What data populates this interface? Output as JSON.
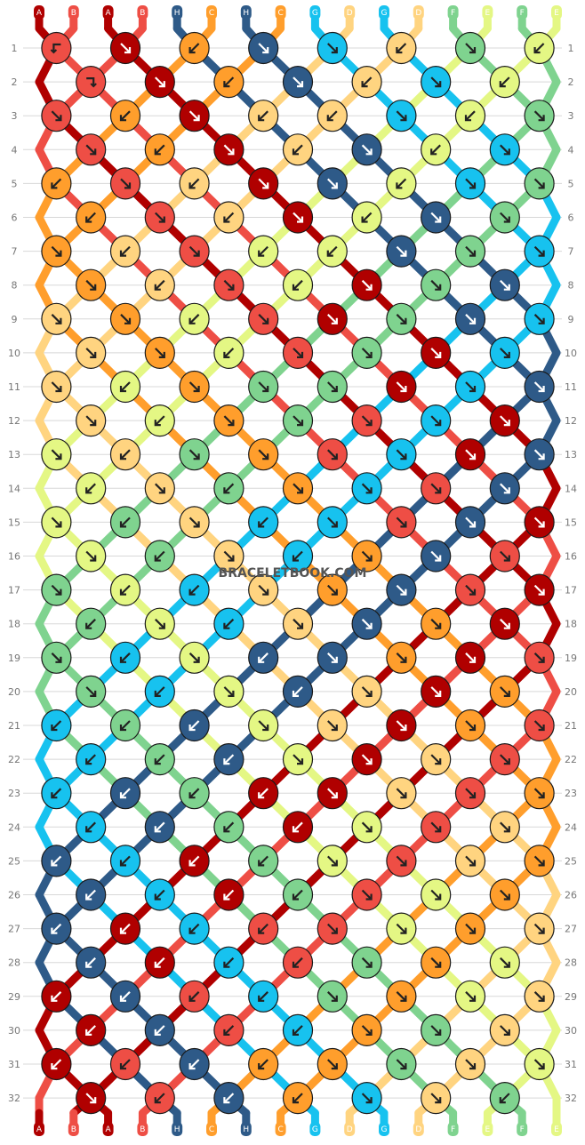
{
  "watermark": "BRACELETBOOK.COM",
  "colors": {
    "A": "#b00000",
    "B": "#ee4e45",
    "H": "#2e5a88",
    "C": "#ff9e2c",
    "G": "#17c2ef",
    "D": "#ffd480",
    "F": "#7fd38f",
    "E": "#e4f784"
  },
  "strands_top": [
    "A",
    "B",
    "A",
    "B",
    "H",
    "C",
    "H",
    "C",
    "G",
    "D",
    "G",
    "D",
    "F",
    "E",
    "F",
    "E"
  ],
  "strands_bottom": [
    "A",
    "B",
    "A",
    "B",
    "H",
    "C",
    "H",
    "C",
    "G",
    "D",
    "G",
    "D",
    "F",
    "E",
    "F",
    "E"
  ],
  "row_numbers": [
    1,
    2,
    3,
    4,
    5,
    6,
    7,
    8,
    9,
    10,
    11,
    12,
    13,
    14,
    15,
    16,
    17,
    18,
    19,
    20,
    21,
    22,
    23,
    24,
    25,
    26,
    27,
    28,
    29,
    30,
    31,
    32
  ],
  "knot_icons": {
    "forward": "arrow-down-right-icon",
    "backward": "arrow-down-left-icon",
    "forward_backward": "arrow-right-then-down-icon",
    "backward_forward": "arrow-left-then-down-icon"
  },
  "knots": {
    "r1": [
      "B:bf",
      "A:f",
      "C:b",
      "H:f",
      "G:f",
      "D:b",
      "F:f",
      "E:b"
    ],
    "r2": [
      "B:fb",
      "A:f",
      "C:b",
      "H:f",
      "D:b",
      "G:f",
      "E:b"
    ],
    "r3": [
      "B:f",
      "C:b",
      "A:f",
      "D:b",
      "D:b",
      "G:f",
      "E:b",
      "F:f"
    ],
    "r4": [
      "B:f",
      "C:b",
      "A:f",
      "D:b",
      "H:f",
      "E:b",
      "G:f"
    ],
    "r5": [
      "C:b",
      "B:f",
      "D:b",
      "A:f",
      "H:f",
      "E:b",
      "G:f",
      "F:f"
    ],
    "r6": [
      "C:b",
      "B:f",
      "D:b",
      "A:f",
      "E:b",
      "H:f",
      "F:f"
    ],
    "r7": [
      "C:f",
      "D:b",
      "B:f",
      "E:b",
      "E:b",
      "H:f",
      "F:f",
      "G:f"
    ],
    "r8": [
      "C:f",
      "D:b",
      "B:f",
      "E:b",
      "A:f",
      "F:f",
      "H:f"
    ],
    "r9": [
      "D:f",
      "C:f",
      "E:b",
      "B:f",
      "A:f",
      "F:f",
      "H:f",
      "G:f"
    ],
    "r10": [
      "D:f",
      "C:f",
      "E:b",
      "B:f",
      "F:f",
      "A:f",
      "G:f"
    ],
    "r11": [
      "D:f",
      "E:b",
      "C:f",
      "F:f",
      "F:f",
      "A:f",
      "G:f",
      "H:f"
    ],
    "r12": [
      "D:f",
      "E:b",
      "C:f",
      "F:f",
      "B:f",
      "G:f",
      "A:f"
    ],
    "r13": [
      "E:f",
      "D:b",
      "F:f",
      "C:f",
      "B:f",
      "G:f",
      "A:f",
      "H:f"
    ],
    "r14": [
      "E:b",
      "D:f",
      "F:b",
      "C:f",
      "G:f",
      "B:f",
      "H:f"
    ],
    "r15": [
      "E:f",
      "F:b",
      "D:f",
      "G:b",
      "G:f",
      "B:f",
      "H:f",
      "A:f"
    ],
    "r16": [
      "E:f",
      "F:b",
      "D:f",
      "G:b",
      "C:f",
      "H:f",
      "B:f"
    ],
    "r17": [
      "F:f",
      "E:b",
      "G:b",
      "D:f",
      "C:f",
      "H:f",
      "B:f",
      "A:f"
    ],
    "r18": [
      "F:b",
      "E:f",
      "G:b",
      "D:f",
      "H:f",
      "C:f",
      "A:f"
    ],
    "r19": [
      "F:f",
      "G:b",
      "E:f",
      "H:b",
      "H:f",
      "C:f",
      "A:f",
      "B:f"
    ],
    "r20": [
      "F:f",
      "G:b",
      "E:f",
      "H:b",
      "D:f",
      "A:f",
      "C:f"
    ],
    "r21": [
      "G:b",
      "F:b",
      "H:b",
      "E:f",
      "D:f",
      "A:f",
      "C:f",
      "B:f"
    ],
    "r22": [
      "G:b",
      "F:b",
      "H:b",
      "E:f",
      "A:f",
      "D:f",
      "B:f"
    ],
    "r23": [
      "G:b",
      "H:b",
      "F:b",
      "A:b",
      "A:f",
      "D:f",
      "B:f",
      "C:f"
    ],
    "r24": [
      "G:b",
      "H:b",
      "F:b",
      "A:b",
      "E:f",
      "B:f",
      "D:f"
    ],
    "r25": [
      "H:b",
      "G:b",
      "A:b",
      "F:b",
      "E:f",
      "B:f",
      "D:f",
      "C:f"
    ],
    "r26": [
      "H:b",
      "G:b",
      "A:b",
      "F:b",
      "B:f",
      "E:f",
      "C:f"
    ],
    "r27": [
      "H:b",
      "A:b",
      "G:b",
      "B:b",
      "B:f",
      "E:f",
      "C:f",
      "D:f"
    ],
    "r28": [
      "H:b",
      "A:b",
      "G:b",
      "B:b",
      "F:f",
      "C:f",
      "E:f"
    ],
    "r29": [
      "A:b",
      "H:b",
      "B:b",
      "G:b",
      "F:f",
      "C:f",
      "E:f",
      "D:f"
    ],
    "r30": [
      "A:b",
      "H:b",
      "B:b",
      "G:b",
      "C:f",
      "F:f",
      "D:f"
    ],
    "r31": [
      "A:b",
      "B:b",
      "H:b",
      "C:b",
      "C:f",
      "F:f",
      "D:f",
      "E:f"
    ],
    "r32": [
      "A:f",
      "B:b",
      "H:b",
      "C:b",
      "G:f",
      "D:f",
      "F:b"
    ]
  }
}
